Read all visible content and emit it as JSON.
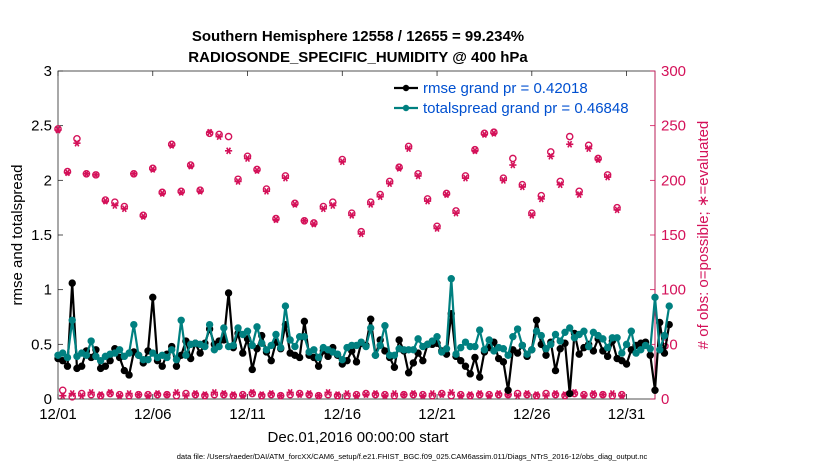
{
  "chart_data": {
    "type": "line",
    "title_line1": "Southern Hemisphere 12558 / 12655 = 99.234%",
    "title_line2": "RADIOSONDE_SPECIFIC_HUMIDITY @ 400 hPa",
    "xlabel": "Dec.01,2016 00:00:00 start",
    "ylabel_left": "rmse and totalspread",
    "ylabel_right": "# of obs: o=possible; ∗=evaluated",
    "footer": "data file: /Users/raeder/DAI/ATM_forcXX/CAM6_setup/f.e21.FHIST_BGC.f09_025.CAM6assim.011/Diags_NTrS_2016-12/obs_diag_output.nc",
    "xlim": [
      0,
      31.5
    ],
    "ylim_left": [
      0,
      3
    ],
    "ylim_right": [
      0,
      300
    ],
    "x_ticks": [
      {
        "day": 0,
        "label": "12/01"
      },
      {
        "day": 5,
        "label": "12/06"
      },
      {
        "day": 10,
        "label": "12/11"
      },
      {
        "day": 15,
        "label": "12/16"
      },
      {
        "day": 20,
        "label": "12/21"
      },
      {
        "day": 25,
        "label": "12/26"
      },
      {
        "day": 30,
        "label": "12/31"
      }
    ],
    "y_ticks_left": [
      "0",
      "0.5",
      "1",
      "1.5",
      "2",
      "2.5",
      "3"
    ],
    "y_ticks_right": [
      "0",
      "50",
      "100",
      "150",
      "200",
      "250",
      "300"
    ],
    "legend": {
      "position": "top-right",
      "entries": [
        {
          "label": "rmse grand pr = 0.42018",
          "color": "#000000"
        },
        {
          "label": "totalspread grand pr = 0.46848",
          "color": "#008080"
        }
      ]
    },
    "colors": {
      "rmse": "#000000",
      "spread": "#008080",
      "obs": "#D41159",
      "legend_text": "#0050D0"
    },
    "step_days": 0.25,
    "series": [
      {
        "name": "rmse",
        "values": [
          0.37,
          0.35,
          0.3,
          1.06,
          0.28,
          0.3,
          0.44,
          0.38,
          0.45,
          0.28,
          0.3,
          0.35,
          0.46,
          0.38,
          0.26,
          0.22,
          0.43,
          0.4,
          0.33,
          0.44,
          0.93,
          0.35,
          0.3,
          0.41,
          0.48,
          0.3,
          0.4,
          0.53,
          0.37,
          0.51,
          0.42,
          0.51,
          0.64,
          0.5,
          0.53,
          0.54,
          0.97,
          0.47,
          0.6,
          0.42,
          0.55,
          0.27,
          0.46,
          0.58,
          0.43,
          0.35,
          0.52,
          0.46,
          0.68,
          0.42,
          0.4,
          0.38,
          0.71,
          0.4,
          0.38,
          0.3,
          0.44,
          0.39,
          0.47,
          0.4,
          0.32,
          0.35,
          0.44,
          0.34,
          0.51,
          0.49,
          0.73,
          0.4,
          0.54,
          0.44,
          0.38,
          0.29,
          0.54,
          0.44,
          0.24,
          0.33,
          0.42,
          0.35,
          0.5,
          0.5,
          0.51,
          0.44,
          0.41,
          0.78,
          0.39,
          0.35,
          0.3,
          0.23,
          0.38,
          0.2,
          0.43,
          0.47,
          0.52,
          0.37,
          0.34,
          0.08,
          0.45,
          0.42,
          0.49,
          0.39,
          0.45,
          0.72,
          0.5,
          0.4,
          0.52,
          0.26,
          0.46,
          0.51,
          0.05,
          0.6,
          0.41,
          0.47,
          0.5,
          0.44,
          0.55,
          0.44,
          0.39,
          0.53,
          0.37,
          0.35,
          0.32,
          0.45,
          0.49,
          0.51,
          0.52,
          0.4,
          0.08,
          0.7,
          0.42,
          0.68
        ]
      },
      {
        "name": "totalspread",
        "values": [
          0.4,
          0.42,
          0.38,
          0.72,
          0.39,
          0.42,
          0.4,
          0.53,
          0.39,
          0.35,
          0.39,
          0.41,
          0.42,
          0.45,
          0.39,
          0.42,
          0.68,
          0.4,
          0.36,
          0.36,
          0.42,
          0.38,
          0.4,
          0.38,
          0.45,
          0.36,
          0.72,
          0.4,
          0.5,
          0.51,
          0.5,
          0.48,
          0.68,
          0.45,
          0.48,
          0.65,
          0.48,
          0.49,
          0.65,
          0.59,
          0.62,
          0.49,
          0.66,
          0.51,
          0.45,
          0.49,
          0.59,
          0.47,
          0.85,
          0.54,
          0.48,
          0.57,
          0.57,
          0.43,
          0.45,
          0.38,
          0.47,
          0.45,
          0.43,
          0.41,
          0.36,
          0.47,
          0.49,
          0.49,
          0.52,
          0.48,
          0.65,
          0.4,
          0.49,
          0.67,
          0.4,
          0.4,
          0.46,
          0.45,
          0.45,
          0.45,
          0.55,
          0.48,
          0.5,
          0.53,
          0.57,
          0.43,
          0.46,
          1.1,
          0.41,
          0.47,
          0.52,
          0.48,
          0.48,
          0.63,
          0.45,
          0.54,
          0.44,
          0.47,
          0.46,
          0.4,
          0.57,
          0.64,
          0.49,
          0.41,
          0.45,
          0.62,
          0.58,
          0.46,
          0.5,
          0.59,
          0.53,
          0.61,
          0.65,
          0.56,
          0.59,
          0.62,
          0.48,
          0.61,
          0.58,
          0.55,
          0.47,
          0.56,
          0.56,
          0.42,
          0.5,
          0.62,
          0.42,
          0.45,
          0.49,
          0.46,
          0.93,
          0.45,
          0.58,
          0.85
        ]
      },
      {
        "name": "obs_possible",
        "values": [
          247,
          8,
          208,
          2,
          238,
          5,
          206,
          4,
          205,
          3,
          182,
          5,
          180,
          4,
          176,
          3,
          206,
          4,
          168,
          4,
          211,
          4,
          189,
          4,
          233,
          3,
          190,
          5,
          214,
          4,
          191,
          3,
          243,
          4,
          242,
          4,
          240,
          3,
          201,
          4,
          222,
          5,
          210,
          3,
          192,
          4,
          165,
          3,
          204,
          4,
          179,
          5,
          163,
          4,
          161,
          3,
          176,
          4,
          180,
          3,
          219,
          3,
          170,
          4,
          153,
          5,
          180,
          4,
          187,
          4,
          199,
          3,
          212,
          4,
          231,
          4,
          206,
          4,
          183,
          3,
          158,
          5,
          188,
          3,
          172,
          4,
          204,
          3,
          228,
          4,
          243,
          4,
          244,
          4,
          202,
          4,
          220,
          5,
          196,
          4,
          170,
          3,
          186,
          5,
          226,
          4,
          199,
          3,
          240,
          5,
          190,
          4,
          232,
          4,
          220,
          4,
          205,
          3,
          175,
          4
        ]
      },
      {
        "name": "obs_evaluated",
        "values": [
          246,
          3,
          207,
          5,
          234,
          3,
          206,
          6,
          205,
          4,
          181,
          6,
          177,
          3,
          174,
          5,
          206,
          4,
          167,
          3,
          210,
          5,
          188,
          4,
          232,
          6,
          189,
          3,
          213,
          5,
          190,
          4,
          244,
          6,
          240,
          5,
          227,
          4,
          199,
          3,
          220,
          6,
          209,
          4,
          190,
          5,
          164,
          3,
          202,
          6,
          178,
          4,
          163,
          5,
          160,
          3,
          174,
          6,
          177,
          4,
          217,
          5,
          168,
          3,
          151,
          4,
          178,
          5,
          185,
          3,
          197,
          5,
          211,
          4,
          229,
          5,
          204,
          3,
          181,
          5,
          156,
          4,
          187,
          6,
          170,
          3,
          202,
          4,
          227,
          5,
          242,
          3,
          243,
          5,
          200,
          4,
          214,
          3,
          194,
          5,
          168,
          4,
          183,
          3,
          222,
          5,
          196,
          4,
          233,
          6,
          187,
          3,
          229,
          5,
          219,
          4,
          203,
          5,
          173,
          3
        ]
      }
    ]
  }
}
